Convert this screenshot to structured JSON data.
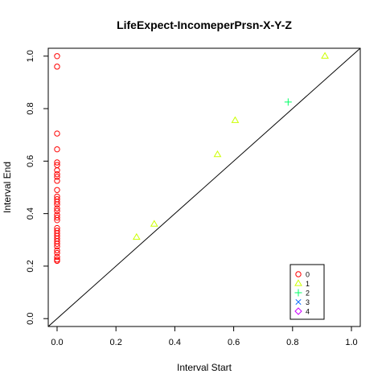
{
  "chart_data": {
    "type": "scatter",
    "title": "LifeExpect-IncomeperPrsn-X-Y-Z",
    "xlabel": "Interval Start",
    "ylabel": "Interval End",
    "xlim": [
      -0.03,
      1.03
    ],
    "ylim": [
      -0.03,
      1.03
    ],
    "xticks": [
      "0.0",
      "0.2",
      "0.4",
      "0.6",
      "0.8",
      "1.0"
    ],
    "yticks": [
      "0.0",
      "0.2",
      "0.4",
      "0.6",
      "0.8",
      "1.0"
    ],
    "diagonal": true,
    "legend_position": "bottom-right",
    "series": [
      {
        "name": "0",
        "color": "#ff0000",
        "marker": "circle",
        "points": [
          [
            0,
            1.0
          ],
          [
            0,
            0.96
          ],
          [
            0,
            0.705
          ],
          [
            0,
            0.645
          ],
          [
            0,
            0.595
          ],
          [
            0,
            0.585
          ],
          [
            0,
            0.565
          ],
          [
            0,
            0.55
          ],
          [
            0,
            0.54
          ],
          [
            0,
            0.525
          ],
          [
            0,
            0.49
          ],
          [
            0,
            0.465
          ],
          [
            0,
            0.455
          ],
          [
            0,
            0.445
          ],
          [
            0,
            0.435
          ],
          [
            0,
            0.42
          ],
          [
            0,
            0.41
          ],
          [
            0,
            0.395
          ],
          [
            0,
            0.385
          ],
          [
            0,
            0.375
          ],
          [
            0,
            0.345
          ],
          [
            0,
            0.335
          ],
          [
            0,
            0.325
          ],
          [
            0,
            0.315
          ],
          [
            0,
            0.305
          ],
          [
            0,
            0.295
          ],
          [
            0,
            0.285
          ],
          [
            0,
            0.275
          ],
          [
            0,
            0.26
          ],
          [
            0,
            0.25
          ],
          [
            0,
            0.235
          ],
          [
            0,
            0.225
          ],
          [
            0,
            0.22
          ]
        ]
      },
      {
        "name": "1",
        "color": "#ccff00",
        "marker": "triangle",
        "points": [
          [
            0.27,
            0.31
          ],
          [
            0.33,
            0.36
          ],
          [
            0.545,
            0.625
          ],
          [
            0.605,
            0.755
          ],
          [
            0.91,
            1.0
          ]
        ]
      },
      {
        "name": "2",
        "color": "#00ff66",
        "marker": "plus",
        "points": [
          [
            0.785,
            0.825
          ]
        ]
      },
      {
        "name": "3",
        "color": "#0066ff",
        "marker": "cross",
        "points": []
      },
      {
        "name": "4",
        "color": "#cc00ff",
        "marker": "diamond",
        "points": []
      }
    ]
  }
}
